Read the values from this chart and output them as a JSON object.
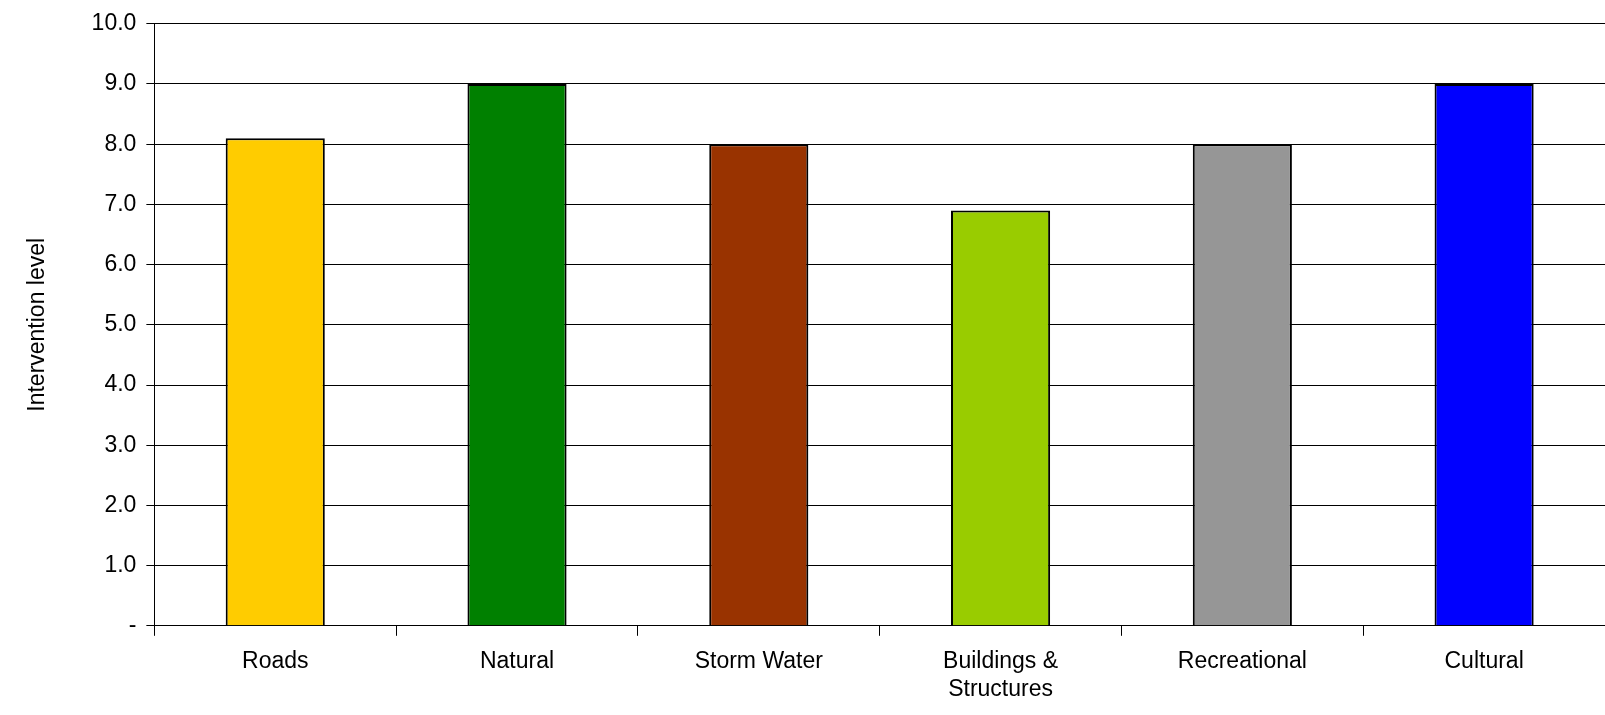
{
  "chart_data": {
    "type": "bar",
    "ylabel": "Intervention level",
    "categories": [
      "Roads",
      "Natural",
      "Storm Water",
      "Buildings & Structures",
      "Recreational",
      "Cultural"
    ],
    "values": [
      8.1,
      9.0,
      8.0,
      6.9,
      8.0,
      9.0
    ],
    "colors": [
      "#ffcc00",
      "#008000",
      "#993300",
      "#99cc00",
      "#969696",
      "#0000ff"
    ],
    "ylim": [
      0,
      10
    ],
    "yticks": [
      {
        "value": 0,
        "label": "-"
      },
      {
        "value": 1,
        "label": "1.0"
      },
      {
        "value": 2,
        "label": "2.0"
      },
      {
        "value": 3,
        "label": "3.0"
      },
      {
        "value": 4,
        "label": "4.0"
      },
      {
        "value": 5,
        "label": "5.0"
      },
      {
        "value": 6,
        "label": "6.0"
      },
      {
        "value": 7,
        "label": "7.0"
      },
      {
        "value": 8,
        "label": "8.0"
      },
      {
        "value": 9,
        "label": "9.0"
      },
      {
        "value": 10,
        "label": "10.0"
      }
    ],
    "grid": "y",
    "legend": false
  }
}
